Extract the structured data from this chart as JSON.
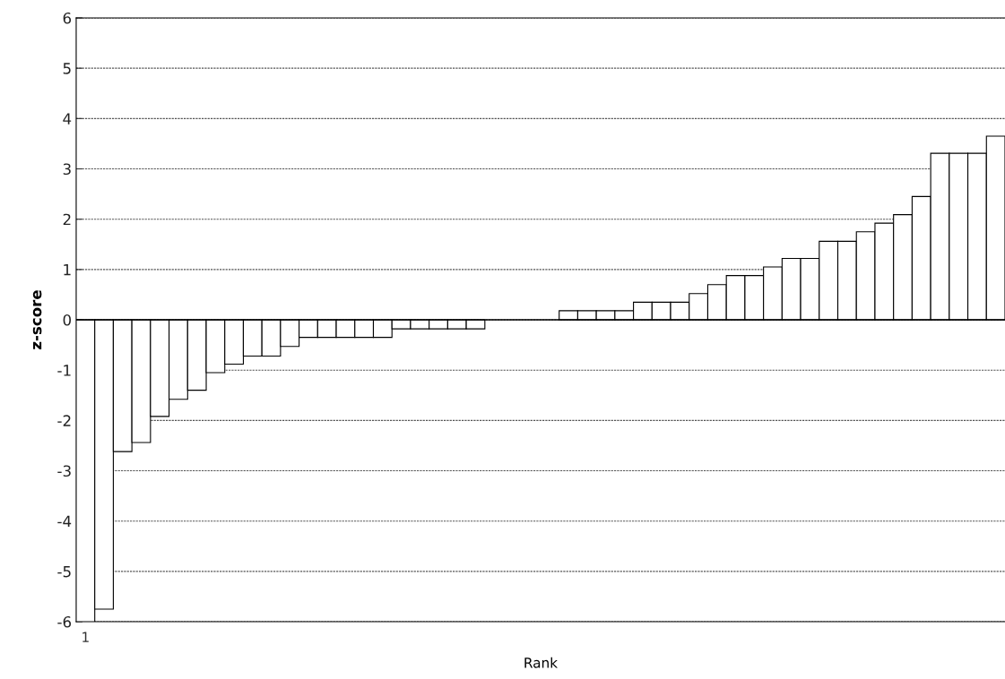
{
  "chart_data": {
    "type": "bar",
    "xlabel": "Rank",
    "ylabel": "z-score",
    "categories": [
      "1",
      null,
      null,
      null,
      null,
      null,
      null,
      null,
      null,
      null,
      null,
      null,
      null,
      null,
      null,
      null,
      null,
      null,
      null,
      null,
      null,
      null,
      null,
      null,
      null,
      null,
      null,
      null,
      null,
      null,
      null,
      null,
      null,
      null,
      null,
      null,
      null,
      null,
      null,
      null,
      null,
      null,
      null,
      null,
      null,
      null,
      null,
      null,
      null,
      null
    ],
    "values": [
      -6,
      -5.75,
      -2.62,
      -2.44,
      -1.92,
      -1.58,
      -1.4,
      -1.05,
      -0.88,
      -0.72,
      -0.72,
      -0.53,
      -0.35,
      -0.35,
      -0.35,
      -0.35,
      -0.35,
      -0.18,
      -0.18,
      -0.18,
      -0.18,
      -0.18,
      0,
      0,
      0,
      0,
      0.18,
      0.18,
      0.18,
      0.18,
      0.35,
      0.35,
      0.35,
      0.52,
      0.7,
      0.88,
      0.88,
      1.05,
      1.22,
      1.22,
      1.56,
      1.56,
      1.75,
      1.92,
      2.09,
      2.45,
      3.31,
      3.31,
      3.31,
      3.65
    ],
    "color": "#ffffff",
    "ylim": [
      -6,
      6
    ],
    "yticks": [
      -6,
      -5,
      -4,
      -3,
      -2,
      -1,
      0,
      1,
      2,
      3,
      4,
      5,
      6
    ],
    "grid": "y"
  }
}
